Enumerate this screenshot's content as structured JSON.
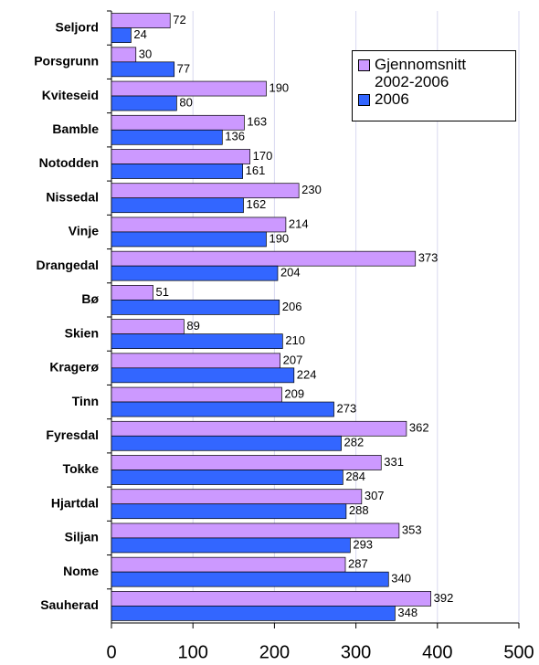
{
  "chart_data": {
    "type": "bar",
    "orientation": "horizontal",
    "categories": [
      "Seljord",
      "Porsgrunn",
      "Kviteseid",
      "Bamble",
      "Notodden",
      "Nissedal",
      "Vinje",
      "Drangedal",
      "Bø",
      "Skien",
      "Kragerø",
      "Tinn",
      "Fyresdal",
      "Tokke",
      "Hjartdal",
      "Siljan",
      "Nome",
      "Sauherad"
    ],
    "series": [
      {
        "name": "Gjennomsnitt 2002-2006",
        "color": "#cc99ff",
        "values": [
          72,
          30,
          190,
          163,
          170,
          230,
          214,
          373,
          51,
          89,
          207,
          209,
          362,
          331,
          307,
          353,
          287,
          392
        ]
      },
      {
        "name": "2006",
        "color": "#3366ff",
        "values": [
          24,
          77,
          80,
          136,
          161,
          162,
          190,
          204,
          206,
          210,
          224,
          273,
          282,
          284,
          288,
          293,
          340,
          348
        ]
      }
    ],
    "xlim": [
      0,
      500
    ],
    "xticks": [
      0,
      100,
      200,
      300,
      400,
      500
    ],
    "grid": true,
    "legend": "upper right"
  }
}
